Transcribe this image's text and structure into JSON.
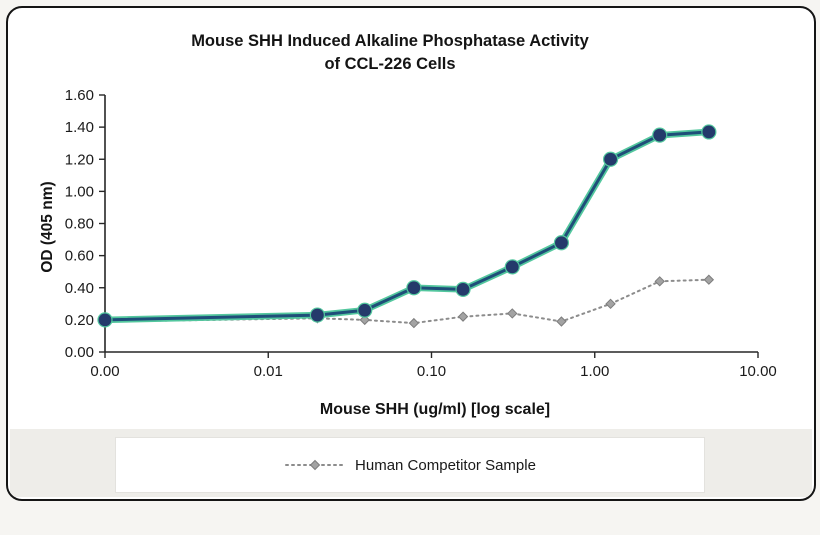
{
  "chart": {
    "title_line1": "Mouse SHH Induced Alkaline Phosphatase Activity",
    "title_line2": "of CCL-226 Cells",
    "ylabel": "OD (405 nm)",
    "xlabel": "Mouse SHH (ug/ml) [log scale]",
    "legend": {
      "competitor_label": "Human Competitor Sample"
    }
  },
  "chart_data": {
    "type": "line",
    "title": "Mouse SHH Induced Alkaline Phosphatase Activity of CCL-226 Cells",
    "xlabel": "Mouse SHH (ug/ml) [log scale]",
    "ylabel": "OD (405 nm)",
    "x_scale": "log",
    "x": [
      0,
      0.02,
      0.039,
      0.078,
      0.156,
      0.3125,
      0.625,
      1.25,
      2.5,
      5
    ],
    "series": [
      {
        "id": "main",
        "marker": "circle",
        "line_style": "solid",
        "values": [
          0.2,
          0.23,
          0.26,
          0.4,
          0.39,
          0.53,
          0.68,
          1.2,
          1.35,
          1.37
        ]
      },
      {
        "id": "competitor",
        "legend_label": "Human Competitor Sample",
        "marker": "diamond",
        "line_style": "dotted",
        "values": [
          0.19,
          0.21,
          0.2,
          0.18,
          0.22,
          0.24,
          0.19,
          0.3,
          0.44,
          0.45
        ]
      }
    ],
    "xticks": [
      {
        "label": "0.00",
        "v": 0.001
      },
      {
        "label": "0.01",
        "v": 0.01
      },
      {
        "label": "0.10",
        "v": 0.1
      },
      {
        "label": "1.00",
        "v": 1
      },
      {
        "label": "10.00",
        "v": 10
      }
    ],
    "yticks": [
      0.0,
      0.2,
      0.4,
      0.6,
      0.8,
      1.0,
      1.2,
      1.4,
      1.6
    ],
    "ylim": [
      0,
      1.6
    ],
    "grid": false,
    "legend_position": "bottom"
  },
  "colors": {
    "main_line": "#1f4e79",
    "main_glow": "#53c79e",
    "main_marker": "#243a6b",
    "competitor_line": "#8c8c8c",
    "competitor_marker_fill": "#a3a3a3",
    "competitor_marker_stroke": "#7d7d7d",
    "axis": "#262626",
    "tick_text": "#1a1a1a"
  }
}
